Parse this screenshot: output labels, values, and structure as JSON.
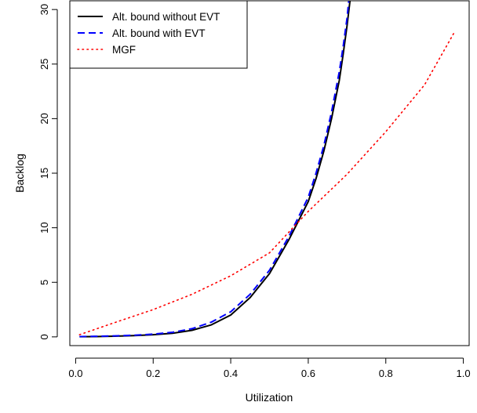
{
  "chart_data": {
    "type": "line",
    "title": "",
    "xlabel": "Utilization",
    "ylabel": "Backlog",
    "xlim": [
      -0.015,
      1.015
    ],
    "ylim": [
      -0.8,
      30.8
    ],
    "xticks": [
      0.0,
      0.2,
      0.4,
      0.6,
      0.8,
      1.0
    ],
    "xtick_labels": [
      "0.0",
      "0.2",
      "0.4",
      "0.6",
      "0.8",
      "1.0"
    ],
    "yticks": [
      0,
      5,
      10,
      15,
      20,
      25,
      30
    ],
    "ytick_labels": [
      "0",
      "5",
      "10",
      "15",
      "20",
      "25",
      "30"
    ],
    "grid": false,
    "legend_position": "top-left",
    "series": [
      {
        "name": "Alt. bound without EVT",
        "color": "#000000",
        "style": "solid",
        "x": [
          0.01,
          0.05,
          0.1,
          0.15,
          0.2,
          0.25,
          0.3,
          0.35,
          0.4,
          0.45,
          0.5,
          0.55,
          0.6,
          0.62,
          0.64,
          0.66,
          0.68,
          0.69,
          0.7,
          0.71
        ],
        "y": [
          0.02,
          0.03,
          0.06,
          0.12,
          0.2,
          0.33,
          0.6,
          1.1,
          2.0,
          3.6,
          5.8,
          8.9,
          12.4,
          14.5,
          17.0,
          20.0,
          23.5,
          25.9,
          28.5,
          31.5
        ]
      },
      {
        "name": "Alt. bound with EVT",
        "color": "#0000ff",
        "style": "dashed",
        "x": [
          0.01,
          0.05,
          0.1,
          0.15,
          0.2,
          0.25,
          0.3,
          0.35,
          0.4,
          0.45,
          0.5,
          0.55,
          0.6,
          0.62,
          0.64,
          0.66,
          0.68,
          0.69,
          0.7,
          0.705
        ],
        "y": [
          0.03,
          0.05,
          0.09,
          0.15,
          0.25,
          0.42,
          0.75,
          1.35,
          2.3,
          3.9,
          6.1,
          9.2,
          12.8,
          15.0,
          17.5,
          20.6,
          24.3,
          26.6,
          29.2,
          31.0
        ]
      },
      {
        "name": "MGF",
        "color": "#ff0000",
        "style": "dotted",
        "x": [
          0.01,
          0.1,
          0.2,
          0.3,
          0.4,
          0.5,
          0.55,
          0.6,
          0.7,
          0.8,
          0.9,
          0.975
        ],
        "y": [
          0.2,
          1.3,
          2.5,
          3.9,
          5.6,
          7.7,
          9.6,
          11.5,
          14.9,
          18.8,
          23.1,
          27.8
        ]
      }
    ]
  }
}
